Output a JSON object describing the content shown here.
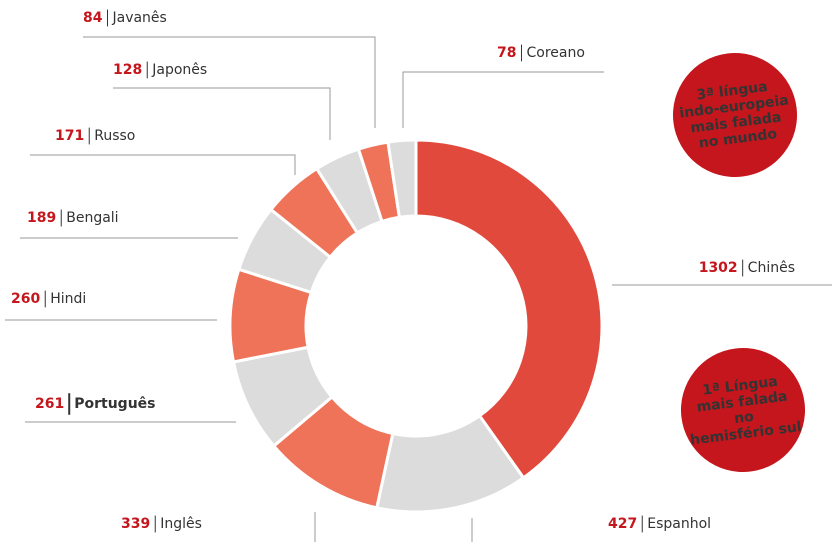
{
  "chart_data": {
    "type": "donut",
    "categories": [
      "Chinês",
      "Espanhol",
      "Inglês",
      "Português",
      "Hindi",
      "Bengali",
      "Russo",
      "Japonês",
      "Javanês",
      "Coreano"
    ],
    "values": [
      1302,
      427,
      339,
      261,
      260,
      189,
      171,
      128,
      84,
      78
    ],
    "colors": [
      "#e2493d",
      "#dcdcdc",
      "#ef7359",
      "#dcdcdc",
      "#ef7359",
      "#dcdcdc",
      "#ef7359",
      "#dcdcdc",
      "#ef7359",
      "#dcdcdc"
    ],
    "callouts": [
      {
        "lines": [
          "3ª língua",
          "indo-europeia",
          "mais falada",
          "no mundo"
        ],
        "color": "#c4161c"
      },
      {
        "lines": [
          "1ª Língua",
          "mais falada",
          "no",
          "hemisfério sul"
        ],
        "color": "#c4161c"
      }
    ]
  }
}
